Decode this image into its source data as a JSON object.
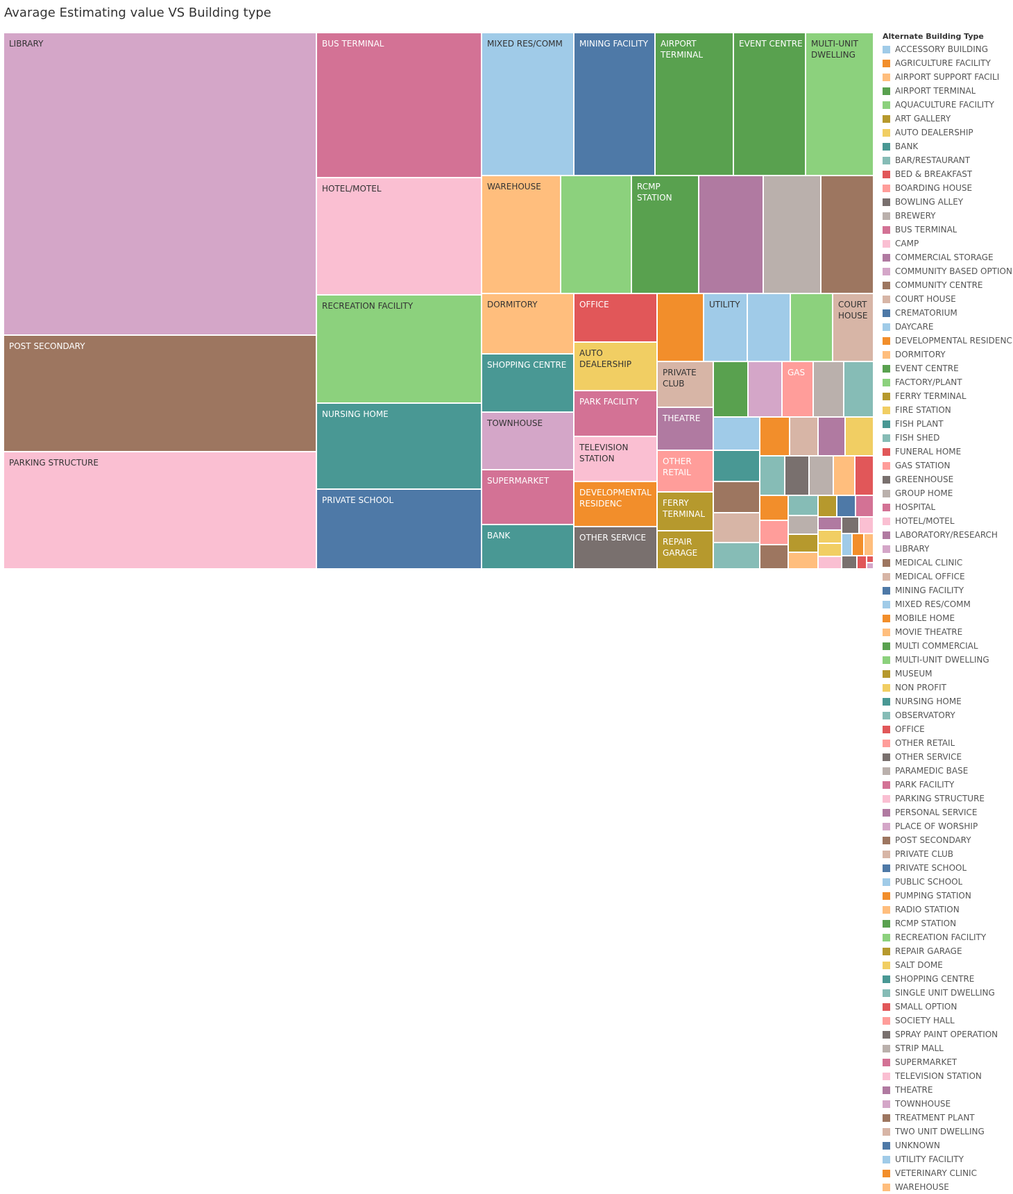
{
  "chart_data": {
    "type": "treemap",
    "title": "Avarage Estimating value VS Building type",
    "legend": {
      "title": "Alternate Building Type",
      "placement": "right"
    },
    "categories": [
      {
        "name": "ACCESSORY BUILDING",
        "color": "#a0cbe8"
      },
      {
        "name": "AGRICULTURE FACILITY",
        "color": "#f28e2b"
      },
      {
        "name": "AIRPORT SUPPORT FACILI",
        "color": "#ffbe7d"
      },
      {
        "name": "AIRPORT TERMINAL",
        "color": "#59a14f"
      },
      {
        "name": "AQUACULTURE FACILITY",
        "color": "#8cd17d"
      },
      {
        "name": "ART GALLERY",
        "color": "#b6992d"
      },
      {
        "name": "AUTO DEALERSHIP",
        "color": "#f1ce63"
      },
      {
        "name": "BANK",
        "color": "#499894"
      },
      {
        "name": "BAR/RESTAURANT",
        "color": "#86bcb6"
      },
      {
        "name": "BED & BREAKFAST",
        "color": "#e15759"
      },
      {
        "name": "BOARDING HOUSE",
        "color": "#ff9d9a"
      },
      {
        "name": "BOWLING ALLEY",
        "color": "#79706e"
      },
      {
        "name": "BREWERY",
        "color": "#bab0ac"
      },
      {
        "name": "BUS TERMINAL",
        "color": "#d37295"
      },
      {
        "name": "CAMP",
        "color": "#fabfd2"
      },
      {
        "name": "COMMERCIAL STORAGE",
        "color": "#b07aa1"
      },
      {
        "name": "COMMUNITY BASED OPTION",
        "color": "#d4a6c8"
      },
      {
        "name": "COMMUNITY CENTRE",
        "color": "#9d7660"
      },
      {
        "name": "COURT HOUSE",
        "color": "#d7b5a6"
      },
      {
        "name": "CREMATORIUM",
        "color": "#4e79a7"
      },
      {
        "name": "DAYCARE",
        "color": "#a0cbe8"
      },
      {
        "name": "DEVELOPMENTAL RESIDENC",
        "color": "#f28e2b"
      },
      {
        "name": "DORMITORY",
        "color": "#ffbe7d"
      },
      {
        "name": "EVENT CENTRE",
        "color": "#59a14f"
      },
      {
        "name": "FACTORY/PLANT",
        "color": "#8cd17d"
      },
      {
        "name": "FERRY TERMINAL",
        "color": "#b6992d"
      },
      {
        "name": "FIRE STATION",
        "color": "#f1ce63"
      },
      {
        "name": "FISH PLANT",
        "color": "#499894"
      },
      {
        "name": "FISH SHED",
        "color": "#86bcb6"
      },
      {
        "name": "FUNERAL HOME",
        "color": "#e15759"
      },
      {
        "name": "GAS STATION",
        "color": "#ff9d9a"
      },
      {
        "name": "GREENHOUSE",
        "color": "#79706e"
      },
      {
        "name": "GROUP HOME",
        "color": "#bab0ac"
      },
      {
        "name": "HOSPITAL",
        "color": "#d37295"
      },
      {
        "name": "HOTEL/MOTEL",
        "color": "#fabfd2"
      },
      {
        "name": "LABORATORY/RESEARCH",
        "color": "#b07aa1"
      },
      {
        "name": "LIBRARY",
        "color": "#d4a6c8"
      },
      {
        "name": "MEDICAL CLINIC",
        "color": "#9d7660"
      },
      {
        "name": "MEDICAL OFFICE",
        "color": "#d7b5a6"
      },
      {
        "name": "MINING FACILITY",
        "color": "#4e79a7"
      },
      {
        "name": "MIXED RES/COMM",
        "color": "#a0cbe8"
      },
      {
        "name": "MOBILE HOME",
        "color": "#f28e2b"
      },
      {
        "name": "MOVIE THEATRE",
        "color": "#ffbe7d"
      },
      {
        "name": "MULTI COMMERCIAL",
        "color": "#59a14f"
      },
      {
        "name": "MULTI-UNIT DWELLING",
        "color": "#8cd17d"
      },
      {
        "name": "MUSEUM",
        "color": "#b6992d"
      },
      {
        "name": "NON PROFIT",
        "color": "#f1ce63"
      },
      {
        "name": "NURSING HOME",
        "color": "#499894"
      },
      {
        "name": "OBSERVATORY",
        "color": "#86bcb6"
      },
      {
        "name": "OFFICE",
        "color": "#e15759"
      },
      {
        "name": "OTHER RETAIL",
        "color": "#ff9d9a"
      },
      {
        "name": "OTHER SERVICE",
        "color": "#79706e"
      },
      {
        "name": "PARAMEDIC BASE",
        "color": "#bab0ac"
      },
      {
        "name": "PARK FACILITY",
        "color": "#d37295"
      },
      {
        "name": "PARKING STRUCTURE",
        "color": "#fabfd2"
      },
      {
        "name": "PERSONAL SERVICE",
        "color": "#b07aa1"
      },
      {
        "name": "PLACE OF WORSHIP",
        "color": "#d4a6c8"
      },
      {
        "name": "POST SECONDARY",
        "color": "#9d7660"
      },
      {
        "name": "PRIVATE CLUB",
        "color": "#d7b5a6"
      },
      {
        "name": "PRIVATE SCHOOL",
        "color": "#4e79a7"
      },
      {
        "name": "PUBLIC SCHOOL",
        "color": "#a0cbe8"
      },
      {
        "name": "PUMPING STATION",
        "color": "#f28e2b"
      },
      {
        "name": "RADIO STATION",
        "color": "#ffbe7d"
      },
      {
        "name": "RCMP STATION",
        "color": "#59a14f"
      },
      {
        "name": "RECREATION FACILITY",
        "color": "#8cd17d"
      },
      {
        "name": "REPAIR GARAGE",
        "color": "#b6992d"
      },
      {
        "name": "SALT DOME",
        "color": "#f1ce63"
      },
      {
        "name": "SHOPPING CENTRE",
        "color": "#499894"
      },
      {
        "name": "SINGLE UNIT DWELLING",
        "color": "#86bcb6"
      },
      {
        "name": "SMALL OPTION",
        "color": "#e15759"
      },
      {
        "name": "SOCIETY HALL",
        "color": "#ff9d9a"
      },
      {
        "name": "SPRAY PAINT OPERATION",
        "color": "#79706e"
      },
      {
        "name": "STRIP MALL",
        "color": "#bab0ac"
      },
      {
        "name": "SUPERMARKET",
        "color": "#d37295"
      },
      {
        "name": "TELEVISION STATION",
        "color": "#fabfd2"
      },
      {
        "name": "THEATRE",
        "color": "#b07aa1"
      },
      {
        "name": "TOWNHOUSE",
        "color": "#d4a6c8"
      },
      {
        "name": "TREATMENT PLANT",
        "color": "#9d7660"
      },
      {
        "name": "TWO UNIT DWELLING",
        "color": "#d7b5a6"
      },
      {
        "name": "UNKNOWN",
        "color": "#4e79a7"
      },
      {
        "name": "UTILITY FACILITY",
        "color": "#a0cbe8"
      },
      {
        "name": "VETERINARY CLINIC",
        "color": "#f28e2b"
      },
      {
        "name": "WAREHOUSE",
        "color": "#ffbe7d"
      }
    ],
    "cells": [
      {
        "label": "LIBRARY",
        "color": "#d4a6c8",
        "r": [
          0,
          0,
          451,
          436
        ]
      },
      {
        "label": "POST SECONDARY",
        "color": "#9d7660",
        "r": [
          0,
          436,
          451,
          168
        ]
      },
      {
        "label": "PARKING STRUCTURE",
        "color": "#fabfd2",
        "r": [
          0,
          604,
          451,
          169
        ]
      },
      {
        "label": "BUS TERMINAL",
        "color": "#d37295",
        "r": [
          451,
          0,
          238,
          209
        ]
      },
      {
        "label": "HOTEL/MOTEL",
        "color": "#fabfd2",
        "r": [
          451,
          209,
          238,
          169
        ]
      },
      {
        "label": "RECREATION FACILITY",
        "color": "#8cd17d",
        "r": [
          451,
          378,
          238,
          156
        ]
      },
      {
        "label": "NURSING HOME",
        "color": "#499894",
        "r": [
          451,
          534,
          238,
          124
        ]
      },
      {
        "label": "PRIVATE SCHOOL",
        "color": "#4e79a7",
        "r": [
          451,
          658,
          238,
          115
        ]
      },
      {
        "label": "MIXED RES/COMM",
        "color": "#a0cbe8",
        "r": [
          689,
          0,
          133,
          206
        ]
      },
      {
        "label": "MINING FACILITY",
        "color": "#4e79a7",
        "r": [
          822,
          0,
          117,
          206
        ]
      },
      {
        "label": "AIRPORT\nTERMINAL",
        "color": "#59a14f",
        "r": [
          939,
          0,
          113,
          206
        ]
      },
      {
        "label": "EVENT CENTRE",
        "color": "#59a14f",
        "r": [
          1052,
          0,
          104,
          206
        ]
      },
      {
        "label": "MULTI-UNIT\nDWELLING",
        "color": "#8cd17d",
        "r": [
          1156,
          0,
          98,
          206
        ]
      },
      {
        "label": "WAREHOUSE",
        "color": "#ffbe7d",
        "r": [
          689,
          206,
          114,
          170
        ]
      },
      {
        "label": "",
        "color": "#8cd17d",
        "r": [
          803,
          206,
          102,
          170
        ]
      },
      {
        "label": "RCMP\nSTATION",
        "color": "#59a14f",
        "r": [
          905,
          206,
          97,
          170
        ]
      },
      {
        "label": "",
        "color": "#b07aa1",
        "r": [
          1002,
          206,
          93,
          170
        ]
      },
      {
        "label": "",
        "color": "#bab0ac",
        "r": [
          1095,
          206,
          83,
          170
        ]
      },
      {
        "label": "",
        "color": "#9d7660",
        "r": [
          1178,
          206,
          76,
          170
        ]
      },
      {
        "label": "DORMITORY",
        "color": "#ffbe7d",
        "r": [
          689,
          376,
          133,
          87
        ]
      },
      {
        "label": "SHOPPING CENTRE",
        "color": "#499894",
        "r": [
          689,
          463,
          133,
          84
        ]
      },
      {
        "label": "TOWNHOUSE",
        "color": "#d4a6c8",
        "r": [
          689,
          547,
          133,
          83
        ]
      },
      {
        "label": "SUPERMARKET",
        "color": "#d37295",
        "r": [
          689,
          630,
          133,
          79
        ]
      },
      {
        "label": "BANK",
        "color": "#499894",
        "r": [
          689,
          709,
          133,
          64
        ]
      },
      {
        "label": "OFFICE",
        "color": "#e15759",
        "r": [
          822,
          376,
          120,
          70
        ]
      },
      {
        "label": "AUTO\nDEALERSHIP",
        "color": "#f1ce63",
        "r": [
          822,
          446,
          120,
          70
        ]
      },
      {
        "label": "PARK FACILITY",
        "color": "#d37295",
        "r": [
          822,
          516,
          120,
          66
        ]
      },
      {
        "label": "TELEVISION\nSTATION",
        "color": "#fabfd2",
        "r": [
          822,
          582,
          120,
          65
        ]
      },
      {
        "label": "DEVELOPMENTAL\nRESIDENC",
        "color": "#f28e2b",
        "r": [
          822,
          647,
          120,
          65
        ]
      },
      {
        "label": "OTHER SERVICE",
        "color": "#79706e",
        "r": [
          822,
          712,
          120,
          61
        ]
      },
      {
        "label": "",
        "color": "#f28e2b",
        "r": [
          942,
          376,
          67,
          98
        ]
      },
      {
        "label": "UTILITY",
        "color": "#a0cbe8",
        "r": [
          1009,
          376,
          63,
          98
        ]
      },
      {
        "label": "",
        "color": "#a0cbe8",
        "r": [
          1072,
          376,
          62,
          98
        ]
      },
      {
        "label": "",
        "color": "#8cd17d",
        "r": [
          1134,
          376,
          61,
          98
        ]
      },
      {
        "label": "COURT\nHOUSE",
        "color": "#d7b5a6",
        "r": [
          1195,
          376,
          59,
          98
        ]
      },
      {
        "label": "PRIVATE\nCLUB",
        "color": "#d7b5a6",
        "r": [
          942,
          474,
          81,
          66
        ]
      },
      {
        "label": "",
        "color": "#59a14f",
        "r": [
          1023,
          474,
          50,
          80
        ]
      },
      {
        "label": "",
        "color": "#d4a6c8",
        "r": [
          1073,
          474,
          49,
          80
        ]
      },
      {
        "label": "GAS",
        "color": "#ff9d9a",
        "r": [
          1122,
          474,
          45,
          80
        ]
      },
      {
        "label": "",
        "color": "#bab0ac",
        "r": [
          1167,
          474,
          44,
          80
        ]
      },
      {
        "label": "",
        "color": "#86bcb6",
        "r": [
          1211,
          474,
          43,
          80
        ]
      },
      {
        "label": "THEATRE",
        "color": "#b07aa1",
        "r": [
          942,
          540,
          81,
          62
        ]
      },
      {
        "label": "OTHER\nRETAIL",
        "color": "#ff9d9a",
        "r": [
          942,
          602,
          81,
          60
        ]
      },
      {
        "label": "FERRY\nTERMINAL",
        "color": "#b6992d",
        "r": [
          942,
          662,
          81,
          56
        ]
      },
      {
        "label": "REPAIR\nGARAGE",
        "color": "#b6992d",
        "r": [
          942,
          718,
          81,
          55
        ]
      },
      {
        "label": "",
        "color": "#a0cbe8",
        "r": [
          1023,
          554,
          67,
          48
        ]
      },
      {
        "label": "",
        "color": "#499894",
        "r": [
          1023,
          602,
          67,
          45
        ]
      },
      {
        "label": "",
        "color": "#9d7660",
        "r": [
          1023,
          647,
          67,
          45
        ]
      },
      {
        "label": "",
        "color": "#d7b5a6",
        "r": [
          1023,
          692,
          67,
          43
        ]
      },
      {
        "label": "",
        "color": "#86bcb6",
        "r": [
          1023,
          735,
          67,
          38
        ]
      },
      {
        "label": "",
        "color": "#f28e2b",
        "r": [
          1090,
          554,
          43,
          56
        ]
      },
      {
        "label": "",
        "color": "#d7b5a6",
        "r": [
          1133,
          554,
          41,
          56
        ]
      },
      {
        "label": "",
        "color": "#b07aa1",
        "r": [
          1174,
          554,
          39,
          56
        ]
      },
      {
        "label": "",
        "color": "#f1ce63",
        "r": [
          1213,
          554,
          41,
          56
        ]
      },
      {
        "label": "",
        "color": "#86bcb6",
        "r": [
          1090,
          610,
          36,
          57
        ]
      },
      {
        "label": "",
        "color": "#79706e",
        "r": [
          1126,
          610,
          35,
          57
        ]
      },
      {
        "label": "",
        "color": "#bab0ac",
        "r": [
          1161,
          610,
          35,
          57
        ]
      },
      {
        "label": "",
        "color": "#ffbe7d",
        "r": [
          1196,
          610,
          31,
          57
        ]
      },
      {
        "label": "",
        "color": "#e15759",
        "r": [
          1227,
          610,
          27,
          57
        ]
      },
      {
        "label": "",
        "color": "#f28e2b",
        "r": [
          1090,
          667,
          41,
          36
        ]
      },
      {
        "label": "",
        "color": "#86bcb6",
        "r": [
          1131,
          667,
          43,
          29
        ]
      },
      {
        "label": "",
        "color": "#b6992d",
        "r": [
          1174,
          667,
          27,
          31
        ]
      },
      {
        "label": "",
        "color": "#4e79a7",
        "r": [
          1201,
          667,
          27,
          31
        ]
      },
      {
        "label": "",
        "color": "#d37295",
        "r": [
          1228,
          667,
          26,
          31
        ]
      },
      {
        "label": "",
        "color": "#ff9d9a",
        "r": [
          1090,
          703,
          41,
          35
        ]
      },
      {
        "label": "",
        "color": "#9d7660",
        "r": [
          1090,
          738,
          41,
          35
        ]
      },
      {
        "label": "",
        "color": "#bab0ac",
        "r": [
          1131,
          696,
          43,
          27
        ]
      },
      {
        "label": "",
        "color": "#b6992d",
        "r": [
          1131,
          723,
          43,
          26
        ]
      },
      {
        "label": "",
        "color": "#ffbe7d",
        "r": [
          1131,
          749,
          43,
          24
        ]
      },
      {
        "label": "",
        "color": "#b07aa1",
        "r": [
          1174,
          698,
          34,
          19
        ]
      },
      {
        "label": "",
        "color": "#79706e",
        "r": [
          1208,
          698,
          25,
          24
        ]
      },
      {
        "label": "",
        "color": "#fabfd2",
        "r": [
          1233,
          698,
          21,
          24
        ]
      },
      {
        "label": "",
        "color": "#f1ce63",
        "r": [
          1174,
          717,
          34,
          19
        ]
      },
      {
        "label": "",
        "color": "#f1ce63",
        "r": [
          1174,
          736,
          34,
          19
        ]
      },
      {
        "label": "",
        "color": "#fabfd2",
        "r": [
          1174,
          755,
          34,
          18
        ]
      },
      {
        "label": "",
        "color": "#a0cbe8",
        "r": [
          1208,
          722,
          15,
          32
        ]
      },
      {
        "label": "",
        "color": "#f28e2b",
        "r": [
          1223,
          722,
          17,
          32
        ]
      },
      {
        "label": "",
        "color": "#ffbe7d",
        "r": [
          1240,
          722,
          14,
          32
        ]
      },
      {
        "label": "",
        "color": "#79706e",
        "r": [
          1208,
          754,
          22,
          19
        ]
      },
      {
        "label": "",
        "color": "#e15759",
        "r": [
          1230,
          754,
          14,
          19
        ]
      },
      {
        "label": "",
        "color": "#e15759",
        "r": [
          1244,
          754,
          10,
          10
        ]
      },
      {
        "label": "",
        "color": "#d4a6c8",
        "r": [
          1244,
          764,
          10,
          9
        ]
      }
    ]
  }
}
